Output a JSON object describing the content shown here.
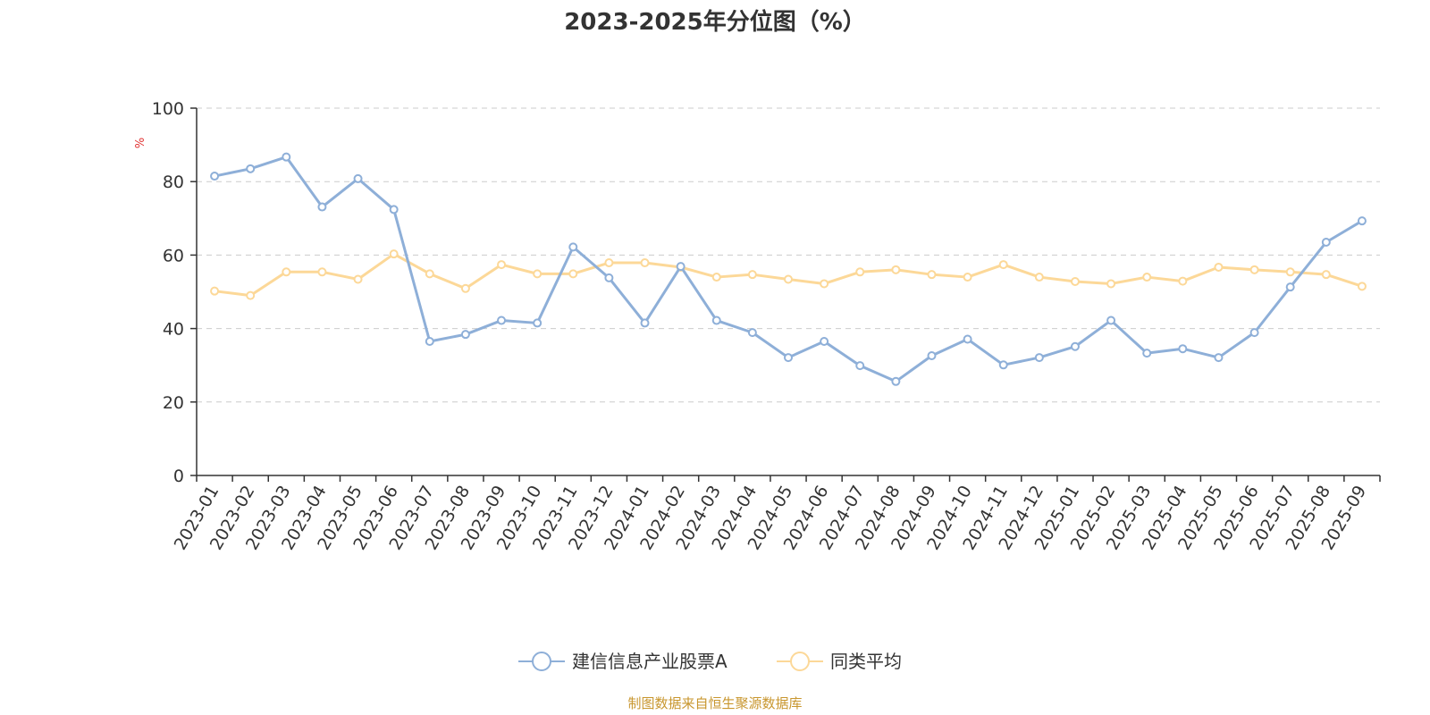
{
  "chart_data": {
    "type": "line",
    "title": "2023-2025年分位图（%）",
    "ylabel": "%",
    "xlabel": "",
    "ylim": [
      0,
      100
    ],
    "yticks": [
      0,
      20,
      40,
      60,
      80,
      100
    ],
    "grid": true,
    "legend_position": "bottom-center",
    "categories": [
      "2023-01",
      "2023-02",
      "2023-03",
      "2023-04",
      "2023-05",
      "2023-06",
      "2023-07",
      "2023-08",
      "2023-09",
      "2023-10",
      "2023-11",
      "2023-12",
      "2024-01",
      "2024-02",
      "2024-03",
      "2024-04",
      "2024-05",
      "2024-06",
      "2024-07",
      "2024-08",
      "2024-09",
      "2024-10",
      "2024-11",
      "2024-12",
      "2025-01",
      "2025-02",
      "2025-03",
      "2025-04",
      "2025-05",
      "2025-06",
      "2025-07",
      "2025-08",
      "2025-09"
    ],
    "series": [
      {
        "name": "建信信息产业股票A",
        "color": "#8eafd8",
        "values": [
          81.5,
          83.5,
          86.7,
          73.1,
          80.8,
          72.4,
          36.5,
          38.4,
          42.2,
          41.5,
          62.2,
          53.8,
          41.5,
          56.9,
          42.2,
          38.9,
          32.1,
          36.5,
          29.9,
          25.6,
          32.6,
          37.1,
          30.1,
          32.1,
          35.1,
          42.2,
          33.3,
          34.5,
          32.1,
          38.9,
          51.3,
          63.5,
          69.3
        ]
      },
      {
        "name": "同类平均",
        "color": "#fcd898",
        "values": [
          50.2,
          49.0,
          55.4,
          55.4,
          53.4,
          60.3,
          54.9,
          50.9,
          57.4,
          54.9,
          54.9,
          57.9,
          57.9,
          56.7,
          54.0,
          54.7,
          53.4,
          52.2,
          55.4,
          56.0,
          54.7,
          54.0,
          57.4,
          54.0,
          52.8,
          52.2,
          54.0,
          52.9,
          56.7,
          56.0,
          55.4,
          54.7,
          51.5
        ]
      }
    ],
    "source": "制图数据来自恒生聚源数据库",
    "source_color": "#c8962e",
    "unit_color": "#e03030",
    "axis_color": "#333333",
    "grid_color": "#cccccc"
  }
}
